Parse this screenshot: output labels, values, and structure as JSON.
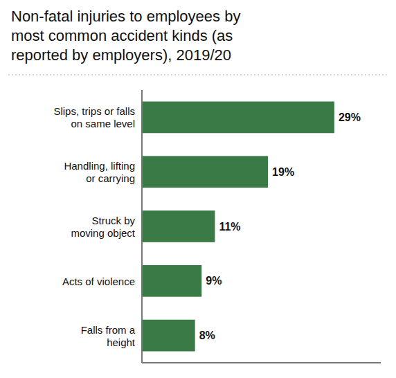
{
  "chart_data": {
    "type": "bar",
    "orientation": "horizontal",
    "title": "Non-fatal injuries to employees by\nmost common accident kinds (as\nreported by employers), 2019/20",
    "categories": [
      "Falls from a\nheight",
      "Acts of violence",
      "Struck by\nmoving object",
      "Handling, lifting\nor carrying",
      "Slips, trips or falls\non same level"
    ],
    "values": [
      8,
      9,
      11,
      19,
      29
    ],
    "value_labels": [
      "8%",
      "9%",
      "11%",
      "19%",
      "29%"
    ],
    "data_labels": true,
    "color": "#3a7a46",
    "xlim": [
      0,
      36
    ],
    "grid": false,
    "tick_labels": "y"
  }
}
